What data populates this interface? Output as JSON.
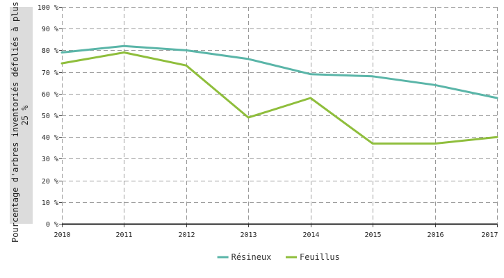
{
  "chart_data": {
    "type": "line",
    "x": [
      "2010",
      "2011",
      "2012",
      "2013",
      "2014",
      "2015",
      "2016",
      "2017"
    ],
    "series": [
      {
        "name": "Résineux",
        "color": "#5ab5a8",
        "values": [
          79,
          82,
          80,
          76,
          69,
          68,
          64,
          58
        ]
      },
      {
        "name": "Feuillus",
        "color": "#8fbe3c",
        "values": [
          74,
          79,
          73,
          49,
          58,
          37,
          37,
          40
        ]
      }
    ],
    "ylabel_line1": "Pourcentage d'arbres inventoriés défoliés à plus de",
    "ylabel_line2": "25 %",
    "ylim": [
      0,
      100
    ],
    "yticks": [
      "0 %",
      "10 %",
      "20 %",
      "30 %",
      "40 %",
      "50 %",
      "60 %",
      "70 %",
      "80 %",
      "90 %",
      "100 %"
    ],
    "grid": true,
    "legend_position": "bottom-center"
  }
}
